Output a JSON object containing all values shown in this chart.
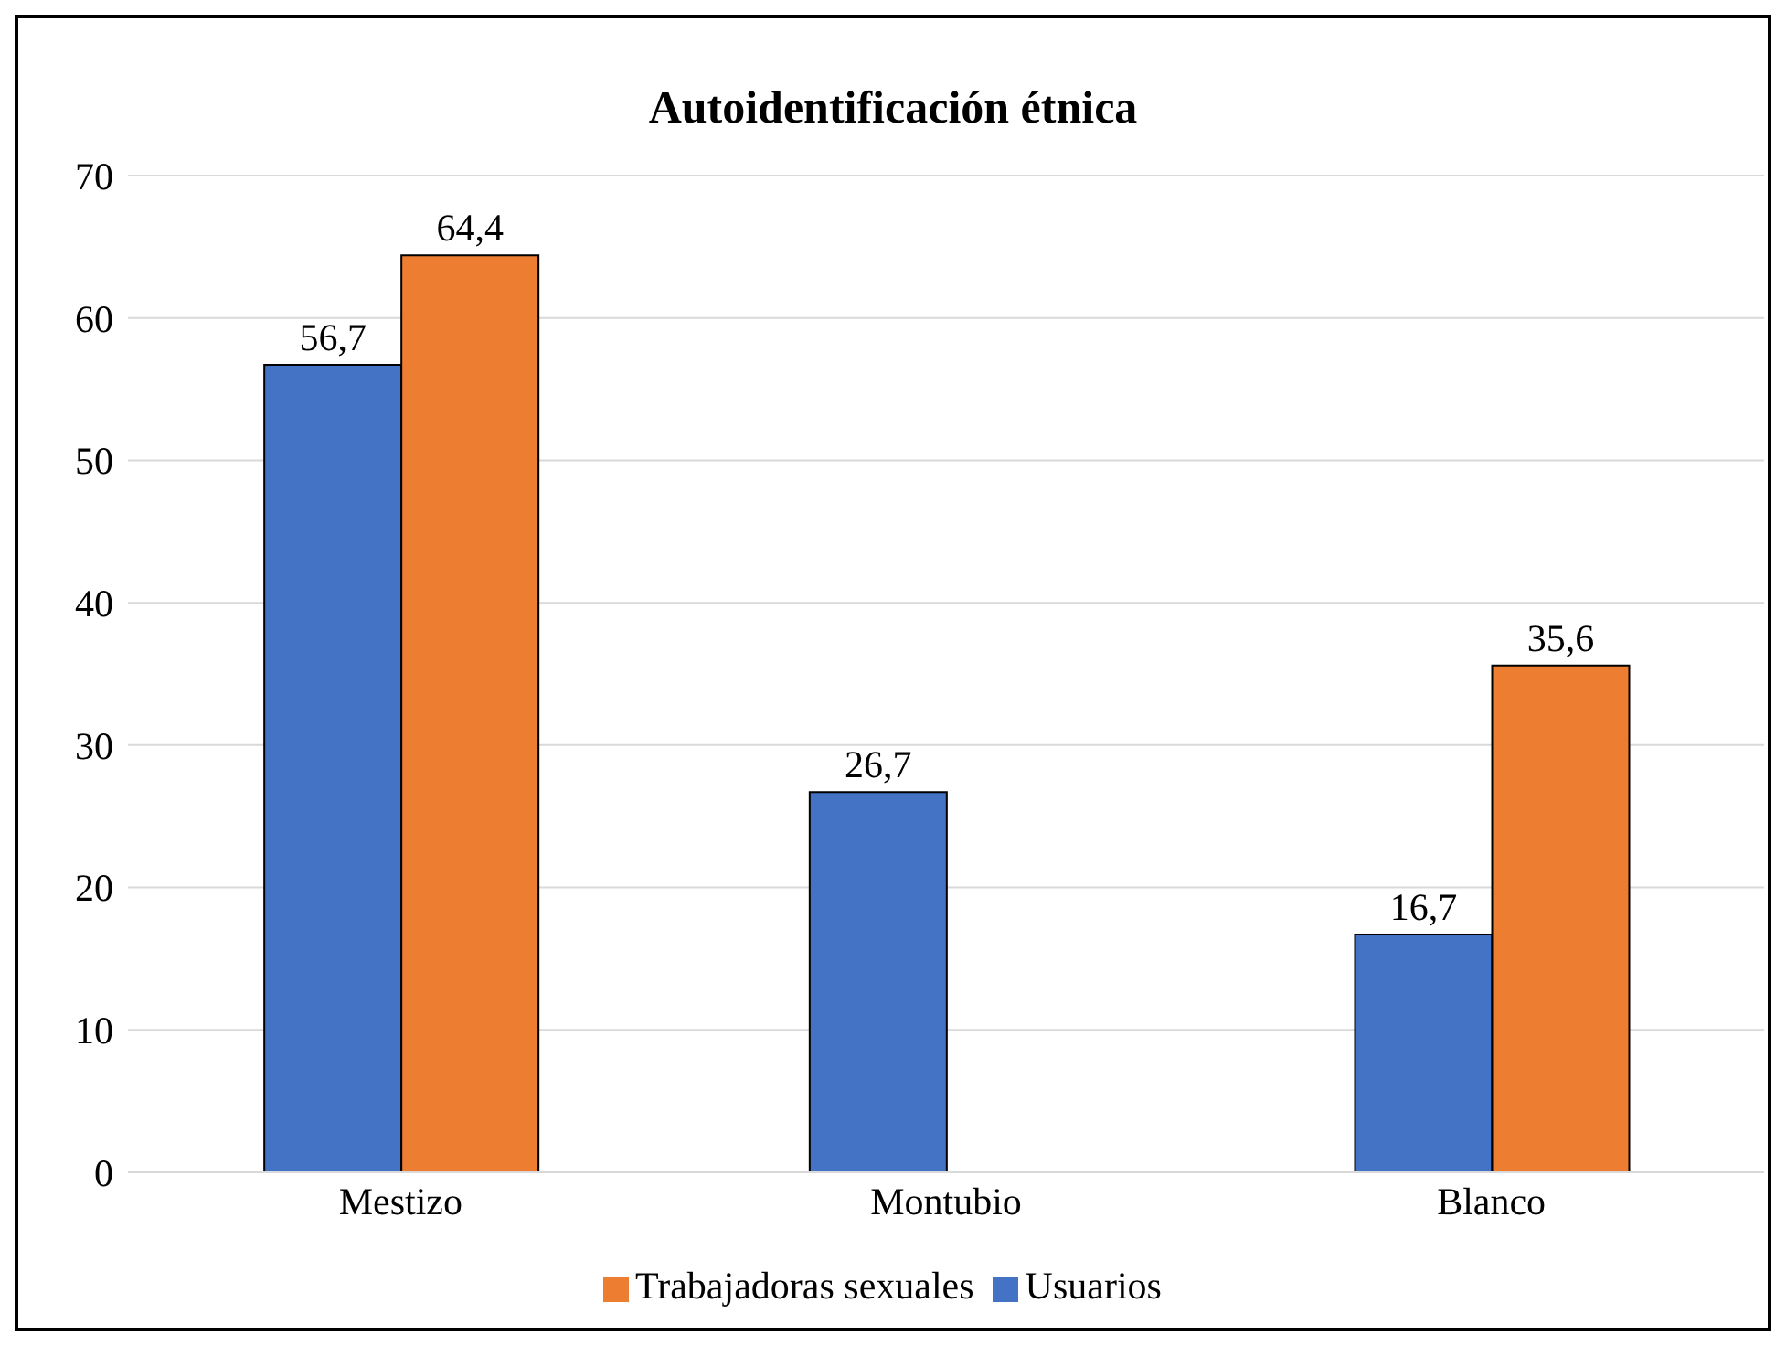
{
  "chart_data": {
    "type": "bar",
    "title": "Autoidentificación étnica",
    "categories": [
      "Mestizo",
      "Montubio",
      "Blanco"
    ],
    "series": [
      {
        "name": "Usuarios",
        "color": "#4472c4",
        "values": [
          56.7,
          26.7,
          16.7
        ],
        "value_labels": [
          "56,7",
          "26,7",
          "16,7"
        ]
      },
      {
        "name": "Trabajadoras sexuales",
        "color": "#ed7d31",
        "values": [
          64.4,
          null,
          35.6
        ],
        "value_labels": [
          "64,4",
          null,
          "35,6"
        ]
      }
    ],
    "ylim": [
      0,
      70
    ],
    "yticks": [
      0,
      10,
      20,
      30,
      40,
      50,
      60,
      70
    ],
    "grid": "y",
    "legend": "bottom"
  }
}
